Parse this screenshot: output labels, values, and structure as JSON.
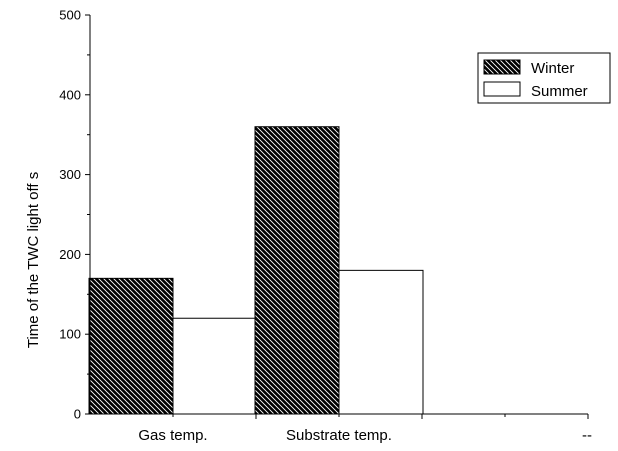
{
  "chart_data": {
    "type": "bar",
    "categories": [
      "Gas temp.",
      "Substrate temp.",
      "--"
    ],
    "series": [
      {
        "name": "Winter",
        "values": [
          170,
          360,
          null
        ],
        "fill": "hatch",
        "color": "#000000"
      },
      {
        "name": "Summer",
        "values": [
          120,
          180,
          null
        ],
        "fill": "solid",
        "color": "#ffffff"
      }
    ],
    "title": "",
    "xlabel": "",
    "ylabel": "Time of the TWC light off   s",
    "ylim": [
      0,
      500
    ],
    "yticks": [
      0,
      100,
      200,
      300,
      400,
      500
    ],
    "grid": false,
    "legend_position": "top-right"
  }
}
